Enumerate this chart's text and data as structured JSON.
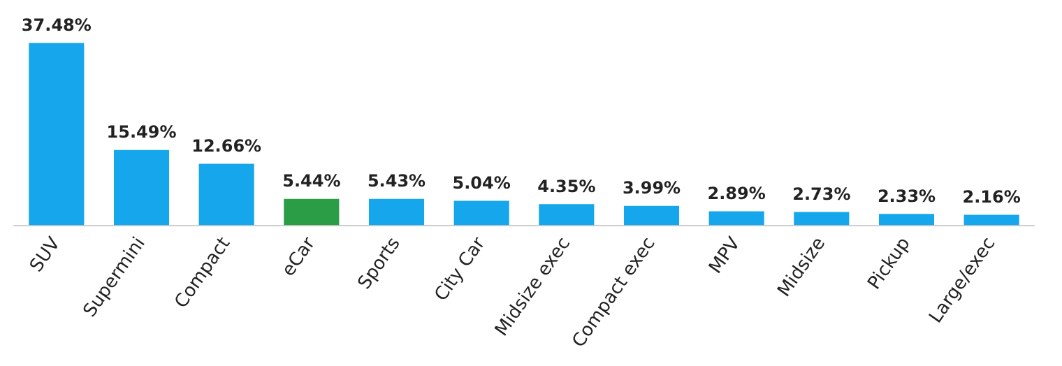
{
  "chart_data": {
    "type": "bar",
    "categories": [
      "SUV",
      "Supermini",
      "Compact",
      "eCar",
      "Sports",
      "City Car",
      "Midsize exec",
      "Compact exec",
      "MPV",
      "Midsize",
      "Pickup",
      "Large/exec"
    ],
    "values": [
      37.48,
      15.49,
      12.66,
      5.44,
      5.43,
      5.04,
      4.35,
      3.99,
      2.89,
      2.73,
      2.33,
      2.16
    ],
    "colors": [
      "#16a6ec",
      "#16a6ec",
      "#16a6ec",
      "#2a9d46",
      "#16a6ec",
      "#16a6ec",
      "#16a6ec",
      "#16a6ec",
      "#16a6ec",
      "#16a6ec",
      "#16a6ec",
      "#16a6ec"
    ],
    "value_labels": [
      "37.48%",
      "15.49%",
      "12.66%",
      "5.44%",
      "5.43%",
      "5.04%",
      "4.35%",
      "3.99%",
      "2.89%",
      "2.73%",
      "2.33%",
      "2.16%"
    ],
    "tick_labels": "x",
    "grid": false,
    "legend": false
  }
}
